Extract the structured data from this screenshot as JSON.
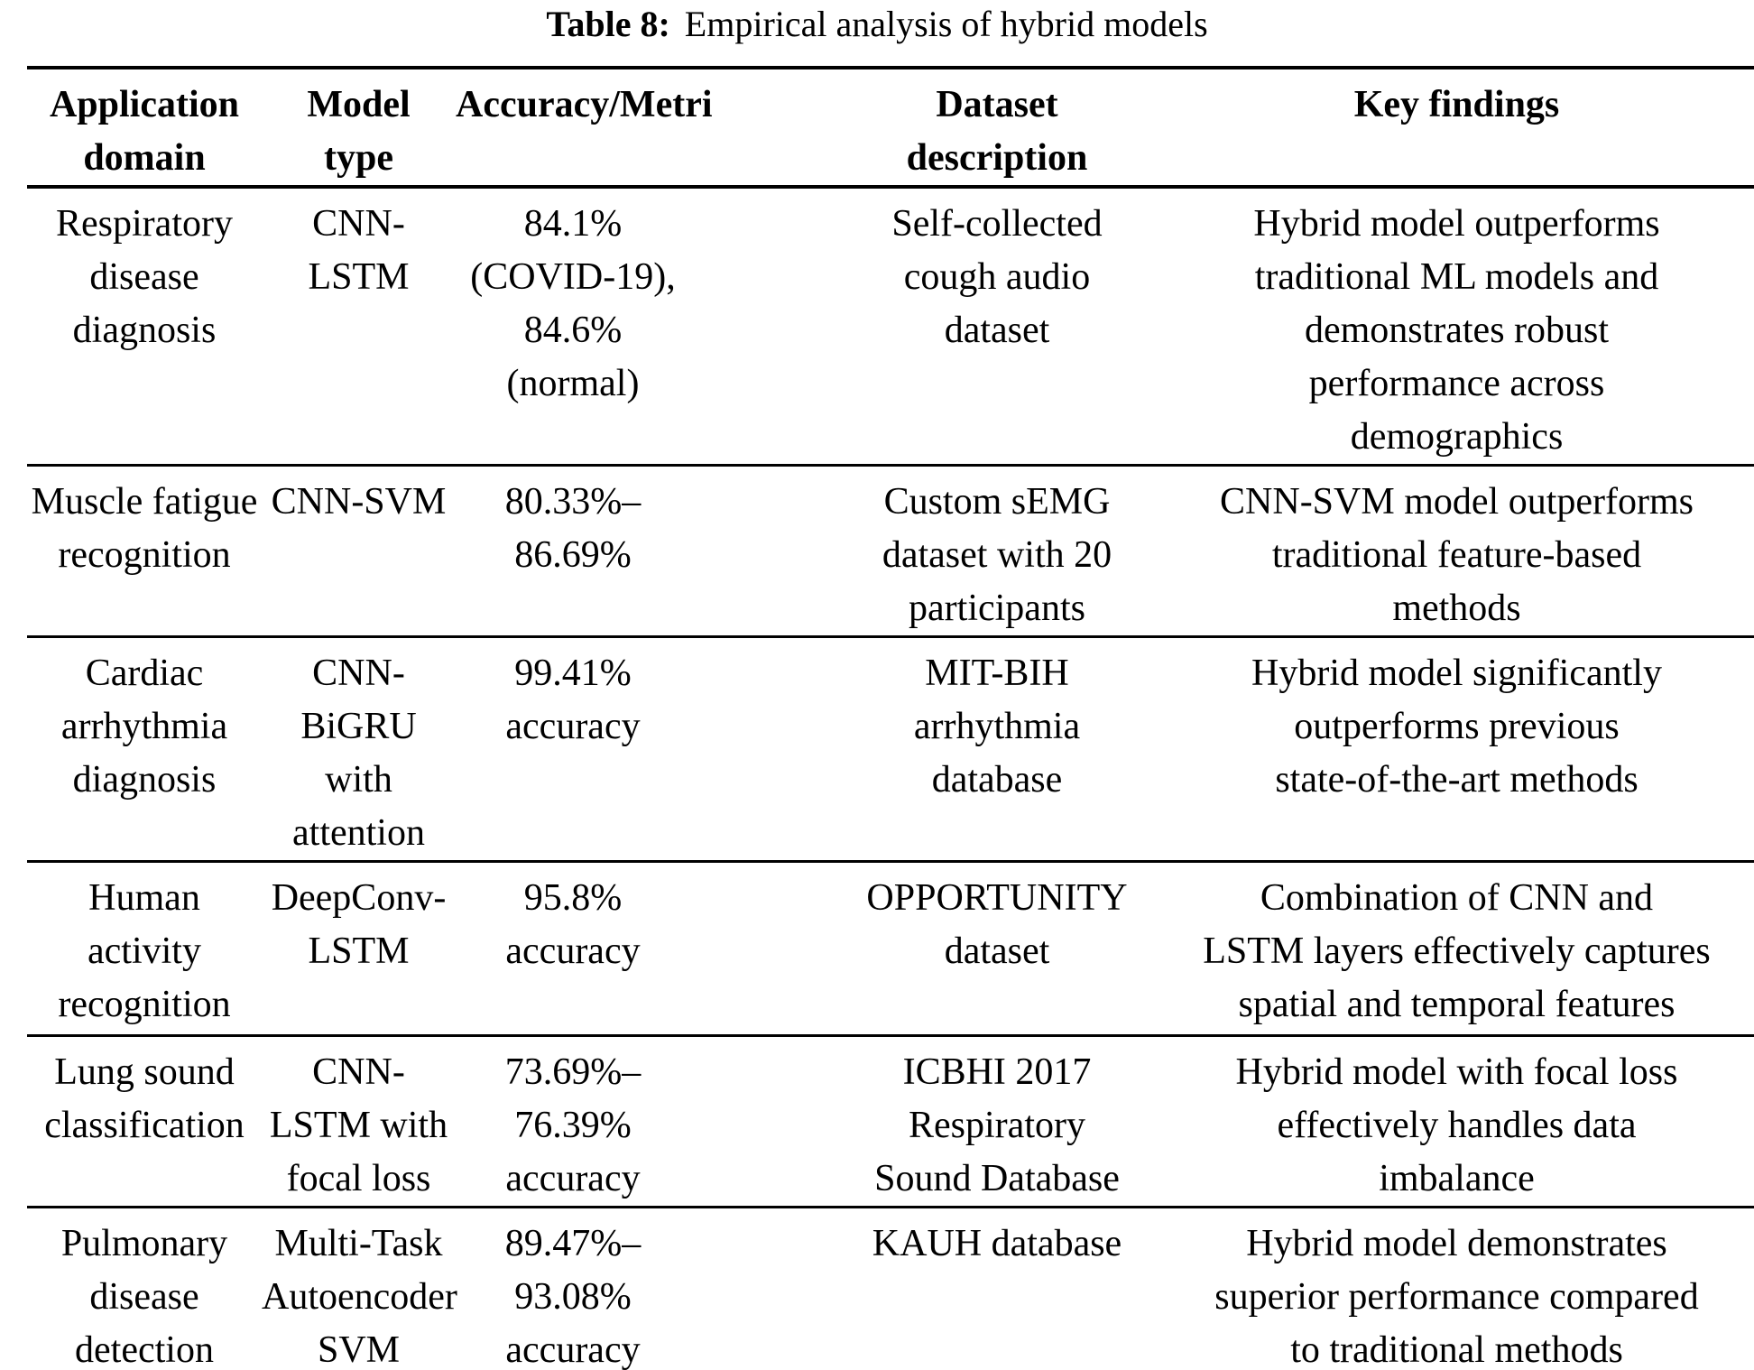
{
  "caption": {
    "label": "Table 8:",
    "text": "Empirical analysis of hybrid models"
  },
  "table": {
    "headers": [
      "Application\ndomain",
      "Model\ntype",
      "Accuracy/Metri",
      "Dataset\ndescription",
      "Key findings"
    ],
    "rows": [
      {
        "cells": [
          "Respiratory\ndisease\ndiagnosis",
          "CNN-\nLSTM",
          "84.1%\n(COVID-19),\n84.6%\n(normal)",
          "Self-collected\ncough audio\ndataset",
          "Hybrid model outperforms\ntraditional ML models and\ndemonstrates robust\nperformance across\ndemographics"
        ]
      },
      {
        "cells": [
          "Muscle fatigue\nrecognition",
          "CNN-SVM",
          "80.33%–\n86.69%",
          "Custom sEMG\ndataset with 20\nparticipants",
          "CNN-SVM model outperforms\ntraditional feature-based\nmethods"
        ]
      },
      {
        "cells": [
          "Cardiac\narrhythmia\ndiagnosis",
          "CNN-\nBiGRU\nwith\nattention",
          "99.41%\naccuracy",
          "MIT-BIH\narrhythmia\ndatabase",
          "Hybrid model significantly\noutperforms previous\nstate-of-the-art methods"
        ]
      },
      {
        "cells": [
          "Human\nactivity\nrecognition",
          "DeepConv-\nLSTM",
          "95.8%\naccuracy",
          "OPPORTUNITY\ndataset",
          "Combination of CNN and\nLSTM layers effectively captures\nspatial and temporal features"
        ]
      },
      {
        "cells": [
          "Lung sound\nclassification",
          "CNN-\nLSTM with\nfocal loss",
          "73.69%–\n76.39%\naccuracy",
          "ICBHI 2017\nRespiratory\nSound Database",
          "Hybrid model with focal loss\neffectively handles data\nimbalance"
        ]
      },
      {
        "cells": [
          "Pulmonary\ndisease\ndetection",
          "Multi-Task\nAutoencoder\nSVM",
          "89.47%–\n93.08%\naccuracy",
          "KAUH database",
          "Hybrid model demonstrates\nsuperior performance compared\nto traditional methods"
        ]
      }
    ]
  },
  "colors": {
    "text": "#000000",
    "rule": "#000000",
    "background": "#ffffff"
  }
}
